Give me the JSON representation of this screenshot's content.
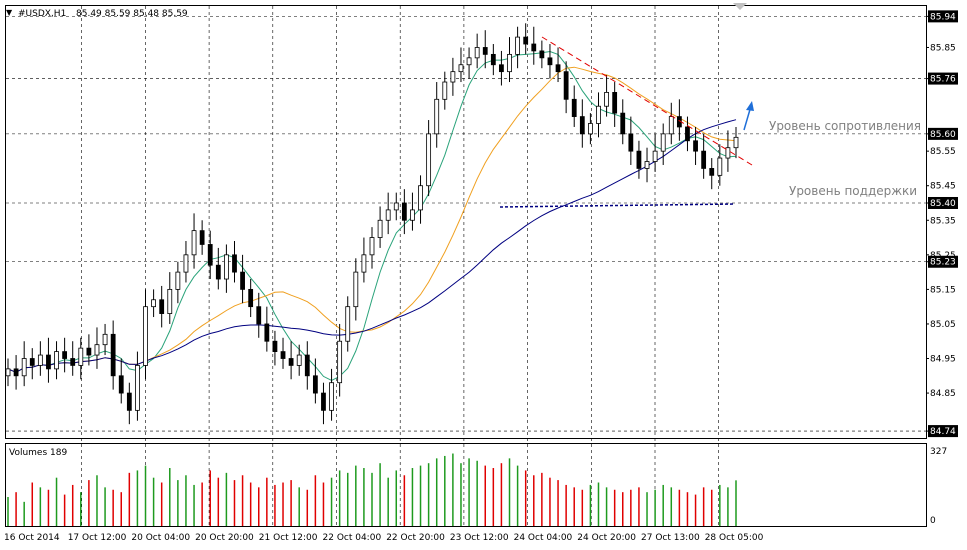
{
  "header": {
    "symbol_label": "#USDX,H1",
    "ohlc": "85.49 85.59 85.48 85.59"
  },
  "volume_panel": {
    "label": "Volumes 189",
    "scale_max": "327",
    "scale_min": "0"
  },
  "annotations": {
    "resistance": "Уровень сопротивления",
    "support": "Уровень поддержки"
  },
  "colors": {
    "bull_candle": "#000000",
    "bear_candle": "#000000",
    "candle_fill_up": "#ffffff",
    "candle_fill_down": "#000000",
    "ma_fast": "#2aa37a",
    "ma_mid": "#f0a020",
    "ma_slow": "#000080",
    "trendline": "#e00000",
    "arrow": "#1f6fd8",
    "vol_up": "#1e9a1e",
    "vol_down": "#e00000",
    "grid": "#000000"
  },
  "chart_data": {
    "type": "candlestick",
    "title": "#USDX,H1",
    "ylim": [
      84.72,
      85.97
    ],
    "y_ticks": [
      "85.94",
      "85.85",
      "85.76",
      "85.60",
      "85.55",
      "85.45",
      "85.40",
      "85.35",
      "85.25",
      "85.23",
      "85.15",
      "85.05",
      "84.95",
      "84.85",
      "84.74"
    ],
    "highlighted_levels": [
      "85.94",
      "85.76",
      "85.60",
      "85.40",
      "85.23",
      "84.74"
    ],
    "x_ticks": [
      "16 Oct 2014",
      "17 Oct 12:00",
      "20 Oct 04:00",
      "20 Oct 20:00",
      "21 Oct 12:00",
      "22 Oct 04:00",
      "22 Oct 20:00",
      "23 Oct 12:00",
      "24 Oct 04:00",
      "24 Oct 20:00",
      "27 Oct 13:00",
      "28 Oct 05:00"
    ],
    "grid": true,
    "close_series": [
      84.92,
      84.9,
      84.95,
      84.93,
      84.96,
      84.92,
      84.97,
      84.95,
      84.93,
      84.98,
      84.96,
      84.99,
      85.02,
      84.9,
      84.85,
      84.8,
      84.93,
      85.1,
      85.12,
      85.08,
      85.15,
      85.2,
      85.25,
      85.32,
      85.28,
      85.22,
      85.18,
      85.25,
      85.2,
      85.15,
      85.1,
      85.05,
      85.0,
      84.97,
      84.95,
      84.93,
      84.96,
      84.9,
      84.85,
      84.8,
      84.88,
      85.0,
      85.1,
      85.2,
      85.25,
      85.3,
      85.35,
      85.38,
      85.4,
      85.35,
      85.38,
      85.45,
      85.6,
      85.7,
      85.75,
      85.78,
      85.8,
      85.82,
      85.85,
      85.83,
      85.8,
      85.78,
      85.83,
      85.88,
      85.86,
      85.84,
      85.82,
      85.8,
      85.78,
      85.7,
      85.65,
      85.6,
      85.63,
      85.68,
      85.72,
      85.66,
      85.6,
      85.55,
      85.5,
      85.52,
      85.55,
      85.6,
      85.65,
      85.62,
      85.58,
      85.55,
      85.5,
      85.48,
      85.53,
      85.56,
      85.59
    ],
    "volume_max": 327,
    "volume_last": 189,
    "series": [
      {
        "name": "Volumes 189",
        "values": [
          120,
          140,
          100,
          180,
          160,
          150,
          200,
          130,
          170,
          140,
          190,
          210,
          160,
          150,
          140,
          220,
          230,
          250,
          200,
          180,
          240,
          190,
          210,
          170,
          180,
          230,
          200,
          220,
          190,
          210,
          180,
          160,
          200,
          170,
          180,
          190,
          160,
          150,
          210,
          180,
          200,
          230,
          220,
          250,
          240,
          220,
          260,
          200,
          230,
          210,
          240,
          250,
          260,
          280,
          290,
          300,
          260,
          280,
          270,
          250,
          240,
          260,
          280,
          250,
          230,
          210,
          220,
          200,
          190,
          170,
          160,
          150,
          170,
          180,
          160,
          150,
          140,
          150,
          160,
          140,
          150,
          170,
          160,
          150,
          140,
          130,
          160,
          150,
          170,
          160,
          189
        ]
      }
    ]
  }
}
